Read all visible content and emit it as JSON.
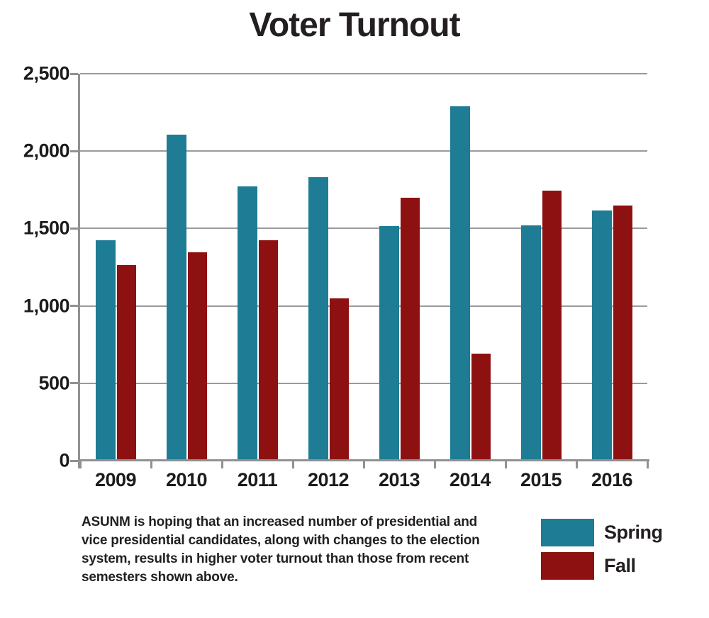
{
  "chart_data": {
    "type": "bar",
    "title": "Voter Turnout",
    "categories": [
      "2009",
      "2010",
      "2011",
      "2012",
      "2013",
      "2014",
      "2015",
      "2016"
    ],
    "series": [
      {
        "name": "Spring",
        "color": "#1e7c95",
        "values": [
          1425,
          2105,
          1770,
          1830,
          1515,
          2290,
          1520,
          1615
        ]
      },
      {
        "name": "Fall",
        "color": "#8e1112",
        "values": [
          1265,
          1345,
          1425,
          1050,
          1700,
          690,
          1745,
          1650
        ]
      }
    ],
    "ylim": [
      0,
      2500
    ],
    "ytick_interval": 500,
    "ytick_labels_top_to_bottom": [
      "2,500",
      "2,000",
      "1,500",
      "1,000",
      "500",
      "0"
    ],
    "xlabel": "",
    "ylabel": "",
    "grid": "horizontal",
    "legend_position": "bottom-right",
    "grid_color": "#9a9a9c",
    "axis_color": "#8f9193"
  },
  "caption": {
    "lines": [
      "ASUNM is hoping that an increased number of presidential and",
      "vice presidential candidates, along with changes to the election",
      "system, results in higher voter turnout than those from recent",
      "semesters shown above."
    ],
    "text": "ASUNM is hoping that an increased number of presidential and vice presidential candidates, along with changes to the election system, results in higher voter turnout than those from recent semesters shown above."
  }
}
